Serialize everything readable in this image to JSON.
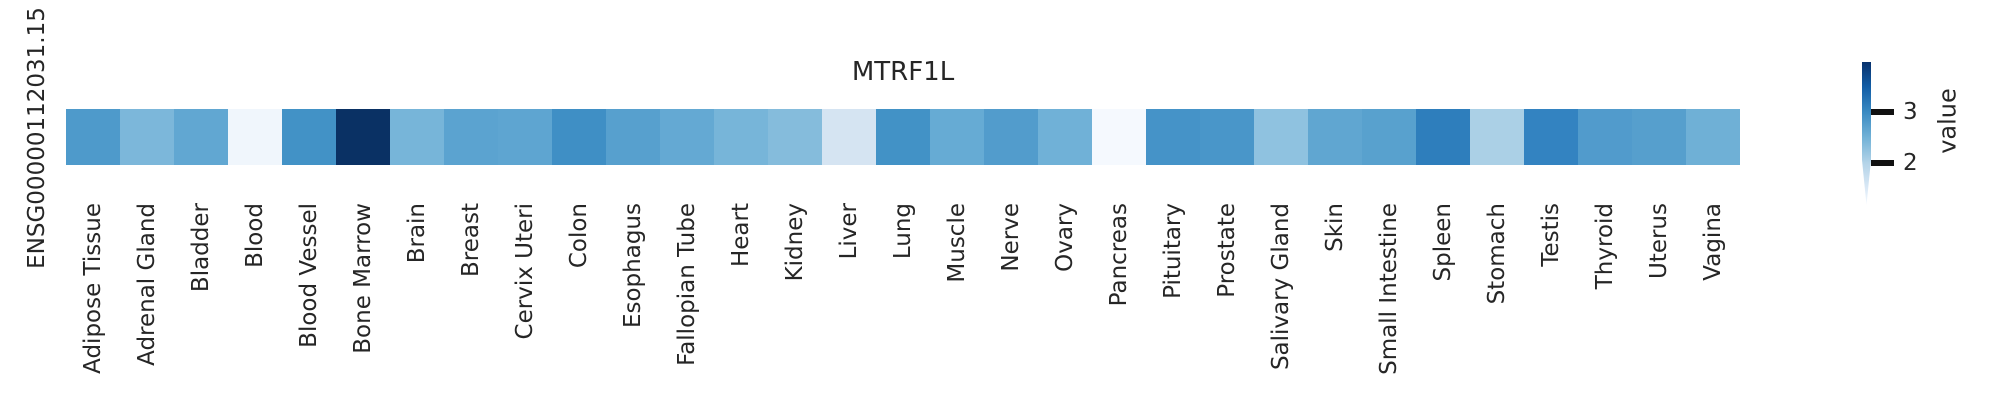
{
  "figure": {
    "title": "MTRF1L",
    "row_label": "ENSG00000112031.15",
    "background_color": "#ffffff",
    "text_color": "#262626"
  },
  "colorbar": {
    "label": "value",
    "ticks": [
      {
        "label": "3"
      },
      {
        "label": "2"
      }
    ],
    "top_color": "#08306b",
    "bottom_color": "#f7fbff"
  },
  "chart_data": {
    "type": "heatmap",
    "title": "MTRF1L",
    "rows": [
      "ENSG00000112031.15"
    ],
    "categories": [
      "Adipose Tissue",
      "Adrenal Gland",
      "Bladder",
      "Blood",
      "Blood Vessel",
      "Bone Marrow",
      "Brain",
      "Breast",
      "Cervix Uteri",
      "Colon",
      "Esophagus",
      "Fallopian Tube",
      "Heart",
      "Kidney",
      "Liver",
      "Lung",
      "Muscle",
      "Nerve",
      "Ovary",
      "Pancreas",
      "Pituitary",
      "Prostate",
      "Salivary Gland",
      "Skin",
      "Small Intestine",
      "Spleen",
      "Stomach",
      "Testis",
      "Thyroid",
      "Uterus",
      "Vagina"
    ],
    "values": [
      2.8,
      2.4,
      2.65,
      1.25,
      2.9,
      4.0,
      2.45,
      2.7,
      2.65,
      2.95,
      2.7,
      2.6,
      2.45,
      2.35,
      1.7,
      2.9,
      2.6,
      2.75,
      2.5,
      1.15,
      2.9,
      2.85,
      2.3,
      2.65,
      2.7,
      3.15,
      2.05,
      3.1,
      2.8,
      2.75,
      2.5
    ],
    "cell_colors": [
      "#4e9acb",
      "#7cb7da",
      "#61a7d2",
      "#f0f6fc",
      "#4292c6",
      "#0a3164",
      "#77b5d9",
      "#5ba3d0",
      "#5ea5d1",
      "#3f8fc5",
      "#57a0ce",
      "#64a9d3",
      "#77b5d9",
      "#85bcdc",
      "#d5e4f2",
      "#4292c6",
      "#66abd4",
      "#529ccc",
      "#70b1d7",
      "#f5f9fe",
      "#4593c8",
      "#4996c9",
      "#8fc2e0",
      "#60a6d1",
      "#58a1ce",
      "#2e7ebc",
      "#abd0e6",
      "#3383c1",
      "#519bcc",
      "#569fcd",
      "#6fb0d6"
    ],
    "colormap": "Blues",
    "vmin": 1.1,
    "vmax": 4.0,
    "colorbar_label": "value",
    "colorbar_ticks": [
      2,
      3
    ],
    "legend_position": "right",
    "grid": false,
    "xlabel": "",
    "ylabel": ""
  }
}
